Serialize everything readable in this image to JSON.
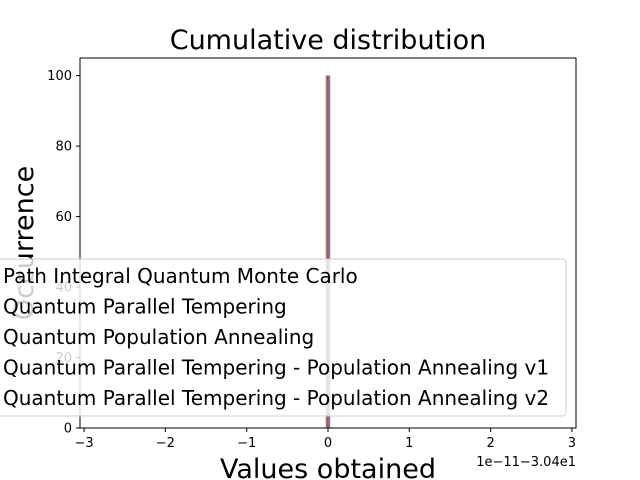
{
  "chart_data": {
    "type": "bar",
    "title": "Cumulative distribution",
    "xlabel": "Values obtained",
    "ylabel": "Occurrence",
    "x_offset_text": "1e−11−3.04e1",
    "xlim": [
      -3.05,
      3.05
    ],
    "ylim": [
      0,
      105
    ],
    "xticks": [
      -3,
      -2,
      -1,
      0,
      1,
      2,
      3
    ],
    "xtick_labels": [
      "−3",
      "−2",
      "−1",
      "0",
      "1",
      "2",
      "3"
    ],
    "yticks": [
      0,
      20,
      40,
      60,
      80,
      100
    ],
    "ytick_labels": [
      "0",
      "20",
      "40",
      "60",
      "80",
      "100"
    ],
    "grid": false,
    "legend_position": "lower center",
    "series": [
      {
        "name": "Path Integral Quantum Monte Carlo",
        "x": 0,
        "value": 100,
        "color": "#1f77b4"
      },
      {
        "name": "Quantum Parallel Tempering",
        "x": 0,
        "value": 100,
        "color": "#ff7f0e"
      },
      {
        "name": "Quantum Population Annealing",
        "x": 0,
        "value": 100,
        "color": "#2ca02c"
      },
      {
        "name": "Quantum Parallel Tempering - Population Annealing v1",
        "x": 0,
        "value": 100,
        "color": "#d62728"
      },
      {
        "name": "Quantum Parallel Tempering - Population Annealing v2",
        "x": 0,
        "value": 100,
        "color": "#9467bd"
      }
    ]
  }
}
